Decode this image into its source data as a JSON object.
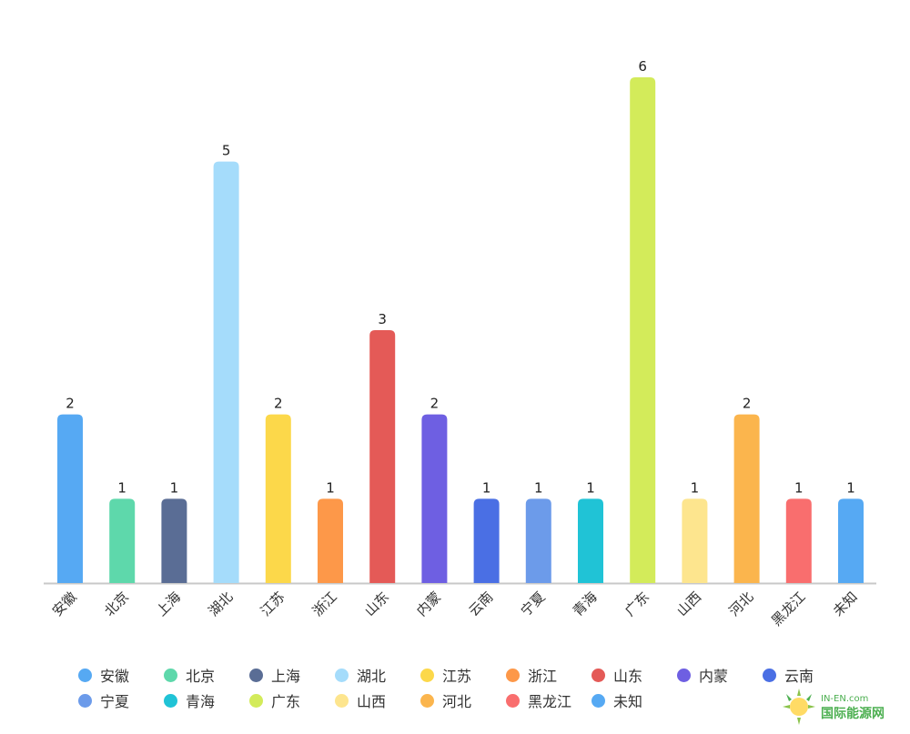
{
  "chart_data": {
    "type": "bar",
    "categories": [
      "安徽",
      "北京",
      "上海",
      "湖北",
      "江苏",
      "浙江",
      "山东",
      "内蒙",
      "云南",
      "宁夏",
      "青海",
      "广东",
      "山西",
      "河北",
      "黑龙江",
      "未知"
    ],
    "values": [
      2,
      1,
      1,
      5,
      2,
      1,
      3,
      2,
      1,
      1,
      1,
      6,
      1,
      2,
      1,
      1
    ],
    "colors": [
      "#56a9f3",
      "#5ed8ab",
      "#5a6d95",
      "#a5dcfb",
      "#fcd84a",
      "#fd9849",
      "#e45a57",
      "#6e5fe2",
      "#4a6fe4",
      "#6c9bea",
      "#20c3d6",
      "#d3eb5a",
      "#fde58e",
      "#fbb54d",
      "#f96e6e",
      "#56a9f3"
    ],
    "title": "",
    "xlabel": "",
    "ylabel": "",
    "ylim": [
      0,
      6
    ],
    "grid": false,
    "legend_position": "bottom"
  },
  "watermark": {
    "line1": "IN-EN.com",
    "line2": "国际能源网"
  }
}
